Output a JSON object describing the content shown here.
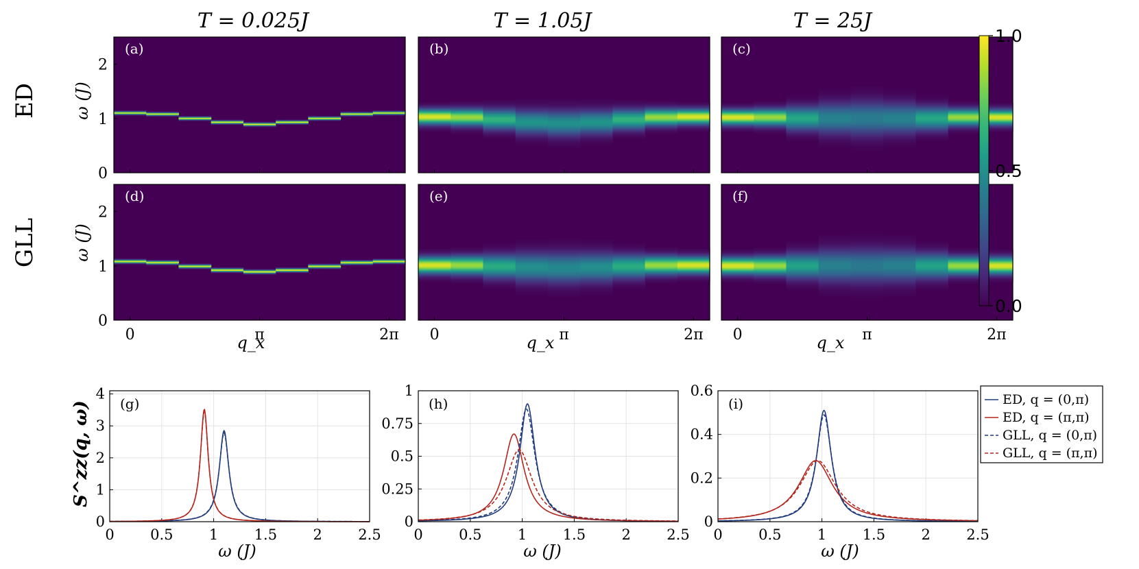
{
  "column_titles": [
    "T = 0.025J",
    "T = 1.05J",
    "T = 25J"
  ],
  "row_labels": [
    "ED",
    "GLL"
  ],
  "heatmap_ylabel": "ω (J)",
  "heatmap_xlabel": "q_x",
  "line_ylabel": "S^zz(q, ω)",
  "line_xlabel": "ω (J)",
  "colormap": [
    "#440154",
    "#482878",
    "#3e4989",
    "#31688e",
    "#26828e",
    "#1f9e89",
    "#35b779",
    "#6ece58",
    "#b5de2b",
    "#fde725"
  ],
  "colorbar_ticks": [
    "0.0",
    "0.5",
    "1.0"
  ],
  "colors": {
    "ed_q0pi": "#1f3a7a",
    "ed_qpipi": "#b3261e",
    "gll_q0pi": "#1f3a7a",
    "gll_qpipi": "#b3261e"
  },
  "chart_data": [
    {
      "type": "heatmap",
      "panel": "(a)",
      "row": "ED",
      "title": "T = 0.025J",
      "x_ticks": [
        "0",
        "π",
        "2π"
      ],
      "y_ticks": [
        "0",
        "1",
        "2"
      ],
      "ylim": [
        0,
        2.5
      ],
      "peak_omega": [
        1.1,
        1.08,
        1.0,
        0.93,
        0.89,
        0.93,
        1.0,
        1.08,
        1.1
      ],
      "peak_width": [
        0.018,
        0.018,
        0.018,
        0.018,
        0.018,
        0.018,
        0.018,
        0.018,
        0.018
      ],
      "peak_intensity": [
        0.95,
        0.95,
        0.95,
        0.97,
        0.97,
        0.97,
        0.95,
        0.95,
        0.95
      ]
    },
    {
      "type": "heatmap",
      "panel": "(b)",
      "row": "ED",
      "title": "T = 1.05J",
      "x_ticks": [
        "0",
        "π",
        "2π"
      ],
      "y_ticks": [
        "0",
        "1",
        "2"
      ],
      "ylim": [
        0,
        2.5
      ],
      "peak_omega": [
        1.03,
        1.02,
        0.98,
        0.93,
        0.91,
        0.93,
        0.98,
        1.02,
        1.03
      ],
      "peak_width": [
        0.09,
        0.1,
        0.12,
        0.14,
        0.15,
        0.14,
        0.12,
        0.1,
        0.09
      ],
      "peak_intensity": [
        0.95,
        0.85,
        0.65,
        0.52,
        0.5,
        0.52,
        0.65,
        0.85,
        0.95
      ]
    },
    {
      "type": "heatmap",
      "panel": "(c)",
      "row": "ED",
      "title": "T = 25J",
      "x_ticks": [
        "0",
        "π",
        "2π"
      ],
      "y_ticks": [
        "0",
        "1",
        "2"
      ],
      "ylim": [
        0,
        2.5
      ],
      "peak_omega": [
        1.02,
        1.02,
        1.0,
        1.0,
        1.0,
        1.0,
        1.0,
        1.02,
        1.02
      ],
      "peak_width": [
        0.09,
        0.1,
        0.14,
        0.18,
        0.2,
        0.18,
        0.14,
        0.1,
        0.09
      ],
      "peak_intensity": [
        0.95,
        0.85,
        0.6,
        0.45,
        0.42,
        0.45,
        0.6,
        0.85,
        0.95
      ]
    },
    {
      "type": "heatmap",
      "panel": "(d)",
      "row": "GLL",
      "title": "",
      "x_ticks": [
        "0",
        "π",
        "2π"
      ],
      "y_ticks": [
        "0",
        "1",
        "2"
      ],
      "ylim": [
        0,
        2.5
      ],
      "peak_omega": [
        1.08,
        1.06,
        0.99,
        0.92,
        0.89,
        0.92,
        0.99,
        1.06,
        1.08
      ],
      "peak_width": [
        0.02,
        0.02,
        0.02,
        0.02,
        0.02,
        0.02,
        0.02,
        0.02,
        0.02
      ],
      "peak_intensity": [
        0.95,
        0.95,
        0.95,
        0.97,
        0.97,
        0.97,
        0.95,
        0.95,
        0.95
      ]
    },
    {
      "type": "heatmap",
      "panel": "(e)",
      "row": "GLL",
      "title": "",
      "x_ticks": [
        "0",
        "π",
        "2π"
      ],
      "y_ticks": [
        "0",
        "1",
        "2"
      ],
      "ylim": [
        0,
        2.5
      ],
      "peak_omega": [
        1.01,
        1.01,
        0.99,
        0.97,
        0.96,
        0.97,
        0.99,
        1.01,
        1.01
      ],
      "peak_width": [
        0.1,
        0.11,
        0.14,
        0.17,
        0.18,
        0.17,
        0.14,
        0.11,
        0.1
      ],
      "peak_intensity": [
        0.95,
        0.85,
        0.62,
        0.5,
        0.47,
        0.5,
        0.62,
        0.85,
        0.95
      ]
    },
    {
      "type": "heatmap",
      "panel": "(f)",
      "row": "GLL",
      "title": "",
      "x_ticks": [
        "0",
        "π",
        "2π"
      ],
      "y_ticks": [
        "0",
        "1",
        "2"
      ],
      "ylim": [
        0,
        2.5
      ],
      "peak_omega": [
        1.0,
        1.0,
        1.0,
        1.0,
        1.0,
        1.0,
        1.0,
        1.0,
        1.0
      ],
      "peak_width": [
        0.1,
        0.11,
        0.15,
        0.19,
        0.2,
        0.19,
        0.15,
        0.11,
        0.1
      ],
      "peak_intensity": [
        0.95,
        0.85,
        0.58,
        0.44,
        0.41,
        0.44,
        0.58,
        0.85,
        0.95
      ]
    },
    {
      "type": "line",
      "panel": "(g)",
      "xlim": [
        0,
        2.5
      ],
      "ylim": [
        0,
        4.1
      ],
      "x_ticks": [
        "0",
        "0.5",
        "1",
        "1.5",
        "2",
        "2.5"
      ],
      "y_ticks": [
        "0",
        "1",
        "2",
        "3",
        "4"
      ],
      "y_tick_values": [
        0,
        1,
        2,
        3,
        4
      ],
      "series": [
        {
          "name": "ED, q = (0,π)",
          "style": "solid",
          "color_key": "ed_q0pi",
          "peak_x": 1.1,
          "peak_y": 2.85,
          "width": 0.055
        },
        {
          "name": "ED, q = (π,π)",
          "style": "solid",
          "color_key": "ed_qpipi",
          "peak_x": 0.91,
          "peak_y": 3.52,
          "width": 0.045
        },
        {
          "name": "GLL, q = (0,π)",
          "style": "dashed",
          "color_key": "gll_q0pi",
          "peak_x": 1.1,
          "peak_y": 2.78,
          "width": 0.057
        },
        {
          "name": "GLL, q = (π,π)",
          "style": "dashed",
          "color_key": "gll_qpipi",
          "peak_x": 0.91,
          "peak_y": 3.45,
          "width": 0.046
        }
      ]
    },
    {
      "type": "line",
      "panel": "(h)",
      "xlim": [
        0,
        2.5
      ],
      "ylim": [
        0,
        1
      ],
      "x_ticks": [
        "0",
        "0.5",
        "1",
        "1.5",
        "2",
        "2.5"
      ],
      "y_ticks": [
        "0",
        "0.25",
        "0.5",
        "0.75",
        "1"
      ],
      "y_tick_values": [
        0,
        0.25,
        0.5,
        0.75,
        1
      ],
      "series": [
        {
          "name": "ED, q = (0,π)",
          "style": "solid",
          "color_key": "ed_q0pi",
          "peak_x": 1.05,
          "peak_y": 0.9,
          "width": 0.09
        },
        {
          "name": "ED, q = (π,π)",
          "style": "solid",
          "color_key": "ed_qpipi",
          "peak_x": 0.92,
          "peak_y": 0.67,
          "width": 0.12
        },
        {
          "name": "GLL, q = (0,π)",
          "style": "dashed",
          "color_key": "gll_q0pi",
          "peak_x": 1.04,
          "peak_y": 0.86,
          "width": 0.1
        },
        {
          "name": "GLL, q = (π,π)",
          "style": "dashed",
          "color_key": "gll_qpipi",
          "peak_x": 0.97,
          "peak_y": 0.55,
          "width": 0.15
        }
      ]
    },
    {
      "type": "line",
      "panel": "(i)",
      "xlim": [
        0,
        2.5
      ],
      "ylim": [
        0,
        0.6
      ],
      "x_ticks": [
        "0",
        "0.5",
        "1",
        "1.5",
        "2",
        "2.5"
      ],
      "y_ticks": [
        "0",
        "0.2",
        "0.4",
        "0.6"
      ],
      "y_tick_values": [
        0,
        0.2,
        0.4,
        0.6
      ],
      "series": [
        {
          "name": "ED, q = (0,π)",
          "style": "solid",
          "color_key": "ed_q0pi",
          "peak_x": 1.02,
          "peak_y": 0.51,
          "width": 0.085
        },
        {
          "name": "ED, q = (π,π)",
          "style": "solid",
          "color_key": "ed_qpipi",
          "peak_x": 0.94,
          "peak_y": 0.28,
          "width": 0.2
        },
        {
          "name": "GLL, q = (0,π)",
          "style": "dashed",
          "color_key": "gll_q0pi",
          "peak_x": 1.02,
          "peak_y": 0.49,
          "width": 0.09
        },
        {
          "name": "GLL, q = (π,π)",
          "style": "dashed",
          "color_key": "gll_qpipi",
          "peak_x": 0.96,
          "peak_y": 0.28,
          "width": 0.21
        }
      ]
    }
  ]
}
